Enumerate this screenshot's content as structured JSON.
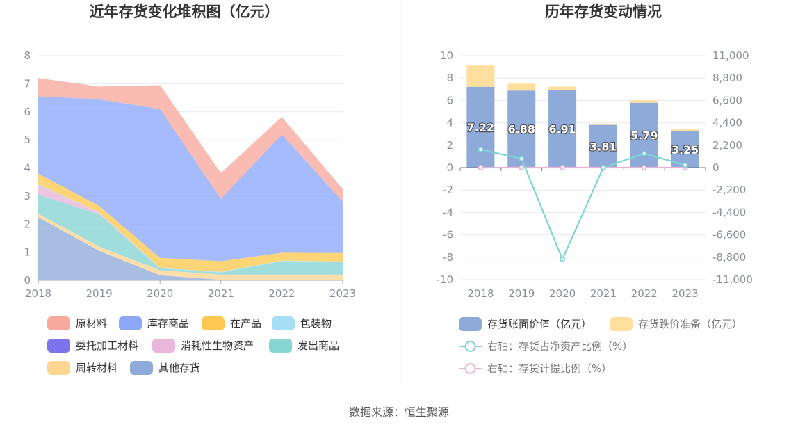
{
  "source_text": "数据来源：恒生聚源",
  "chart_data": [
    {
      "type": "area",
      "stacked": true,
      "title": "近年存货变化堆积图（亿元）",
      "categories": [
        "2018",
        "2019",
        "2020",
        "2021",
        "2022",
        "2023"
      ],
      "ylim": [
        0,
        8
      ],
      "yticks": [
        "0",
        "1",
        "2",
        "3",
        "4",
        "5",
        "6",
        "7",
        "8"
      ],
      "grid": true,
      "legend_position": "bottom",
      "series": [
        {
          "name": "其他存货",
          "color": "#8eaad8",
          "values": [
            2.25,
            1.05,
            0.18,
            0.02,
            0.02,
            0.02
          ]
        },
        {
          "name": "周转材料",
          "color": "#ffd592",
          "values": [
            0.12,
            0.15,
            0.18,
            0.18,
            0.18,
            0.18
          ]
        },
        {
          "name": "发出商品",
          "color": "#85d5d3",
          "values": [
            0.68,
            1.15,
            0.06,
            0.08,
            0.48,
            0.45
          ]
        },
        {
          "name": "消耗性生物资产",
          "color": "#e9b6dc",
          "values": [
            0.35,
            0.05,
            0,
            0,
            0,
            0
          ]
        },
        {
          "name": "委托加工材料",
          "color": "#7b74ec",
          "values": [
            0,
            0,
            0,
            0,
            0,
            0
          ]
        },
        {
          "name": "包装物",
          "color": "#a8def5",
          "values": [
            0.02,
            0.02,
            0.02,
            0.02,
            0.02,
            0.02
          ]
        },
        {
          "name": "在产品",
          "color": "#fcc850",
          "values": [
            0.38,
            0.23,
            0.36,
            0.38,
            0.28,
            0.3
          ]
        },
        {
          "name": "库存商品",
          "color": "#8da8fa",
          "values": [
            2.75,
            3.8,
            5.3,
            2.22,
            4.22,
            1.83
          ]
        },
        {
          "name": "原材料",
          "color": "#f9a99c",
          "values": [
            0.65,
            0.45,
            0.85,
            0.92,
            0.62,
            0.45
          ]
        }
      ],
      "legend_order": [
        "原材料",
        "库存商品",
        "在产品",
        "包装物",
        "委托加工材料",
        "消耗性生物资产",
        "发出商品",
        "周转材料",
        "其他存货"
      ]
    },
    {
      "type": "bar+line",
      "title": "历年存货变动情况",
      "categories": [
        "2018",
        "2019",
        "2020",
        "2021",
        "2022",
        "2023"
      ],
      "ylim_left": [
        -10,
        10
      ],
      "yticks_left": [
        "-10",
        "-8",
        "-6",
        "-4",
        "-2",
        "0",
        "2",
        "4",
        "6",
        "8",
        "10"
      ],
      "ylim_right": [
        -11000,
        11000
      ],
      "yticks_right": [
        "-11,000",
        "-8,800",
        "-6,600",
        "-4,400",
        "-2,200",
        "0",
        "2,200",
        "4,400",
        "6,600",
        "8,800",
        "11,000"
      ],
      "grid": true,
      "legend_position": "bottom",
      "bar_labels": [
        "7.22",
        "6.88",
        "6.91",
        "3.81",
        "5.79",
        "3.25"
      ],
      "series": [
        {
          "name": "存货账面价值（亿元）",
          "type": "bar",
          "axis": "left",
          "color": "#8eaad8",
          "values": [
            7.22,
            6.88,
            6.91,
            3.81,
            5.79,
            3.25
          ]
        },
        {
          "name": "存货跌价准备（亿元）",
          "type": "bar",
          "axis": "left",
          "color": "#ffdf9e",
          "values": [
            1.9,
            0.62,
            0.32,
            0.1,
            0.22,
            0.16
          ]
        },
        {
          "name": "右轴：存货占净资产比例（%）",
          "type": "line",
          "axis": "right",
          "color": "#7ed3d5",
          "values": [
            1780,
            870,
            -9000,
            0,
            1380,
            250
          ]
        },
        {
          "name": "右轴：存货计提比例（%）",
          "type": "line",
          "axis": "right",
          "color": "#e7b2d8",
          "values": [
            0,
            0,
            0,
            0,
            0,
            0
          ]
        }
      ]
    }
  ]
}
